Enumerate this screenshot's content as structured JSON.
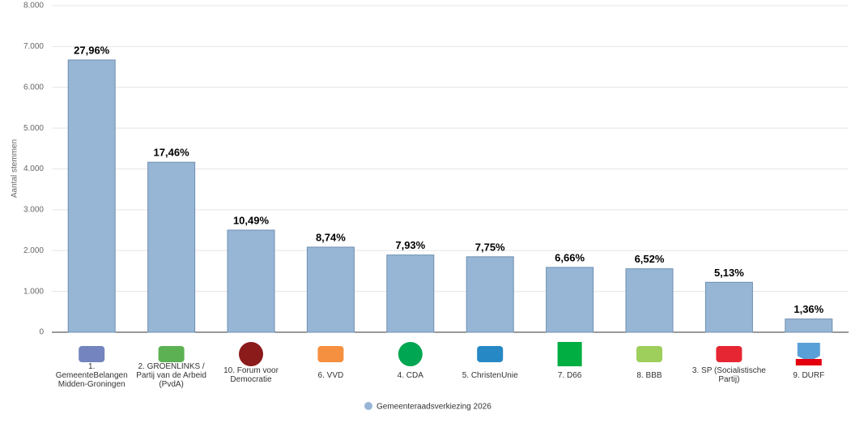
{
  "chart_data": {
    "type": "bar",
    "y_axis_label": "Aantal stemmen",
    "categories": [
      "1. GemeenteBelangen Midden-Groningen",
      "2. GROENLINKS / Partij van de Arbeid (PvdA)",
      "10. Forum voor Democratie",
      "6. VVD",
      "4. CDA",
      "5. ChristenUnie",
      "7. D66",
      "8. BBB",
      "3. SP (Socialistische Partij)",
      "9. DURF"
    ],
    "series": [
      {
        "name": "Gemeenteraadsverkiezing 2026",
        "color": "#97b6d6",
        "values": [
          6670,
          4165,
          2502,
          2085,
          1892,
          1849,
          1589,
          1555,
          1224,
          324
        ],
        "value_labels": [
          "27,96%",
          "17,46%",
          "10,49%",
          "8,74%",
          "7,93%",
          "7,75%",
          "6,66%",
          "6,52%",
          "5,13%",
          "1,36%"
        ]
      }
    ],
    "ylim": [
      0,
      8000
    ],
    "yticks": [
      0,
      {
        "value": 1000,
        "label": "1.000"
      },
      {
        "value": 2000,
        "label": "2.000"
      },
      {
        "value": 3000,
        "label": "3.000"
      },
      {
        "value": 4000,
        "label": "4.000"
      },
      {
        "value": 5000,
        "label": "5.000"
      },
      {
        "value": 6000,
        "label": "6.000"
      },
      {
        "value": 7000,
        "label": "7.000"
      },
      {
        "value": 8000,
        "label": "8.000"
      }
    ],
    "grid": true
  }
}
